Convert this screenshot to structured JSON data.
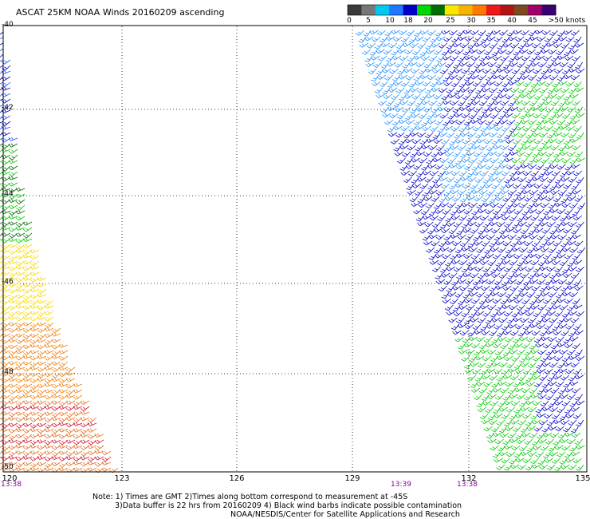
{
  "title": "ASCAT 25KM NOAA Winds 20160209 ascending",
  "colors": {
    "color_scale": [
      "#3a3a3a",
      "#777777",
      "#00c8f0",
      "#1e78ff",
      "#0000c8",
      "#00d800",
      "#006e00",
      "#f8e800",
      "#f8b400",
      "#ff7800",
      "#f01818",
      "#b41414",
      "#7a4a20",
      "#a0006a",
      "#380070"
    ]
  },
  "color_scale_labels": [
    "0",
    "5",
    "10",
    "18",
    "20",
    "25",
    "30",
    "35",
    "40",
    "45",
    ">50 knots"
  ],
  "x_axis": {
    "ticks": [
      "120",
      "123",
      "126",
      "129",
      "132",
      "135"
    ],
    "times": [
      "13:38",
      "13:39",
      "13:38"
    ]
  },
  "y_axis": {
    "ticks": [
      "-40",
      "-42",
      "-44",
      "-46",
      "-48",
      "-50"
    ]
  },
  "notes": [
    "Note: 1) Times are GMT 2)Times along bottom correspond to measurement at -45S",
    "3)Data buffer is 22 hrs from 20160209 4) Black wind barbs indicate possible contamination",
    "NOAA/NESDIS/Center for Satellite Applications and Research"
  ]
}
